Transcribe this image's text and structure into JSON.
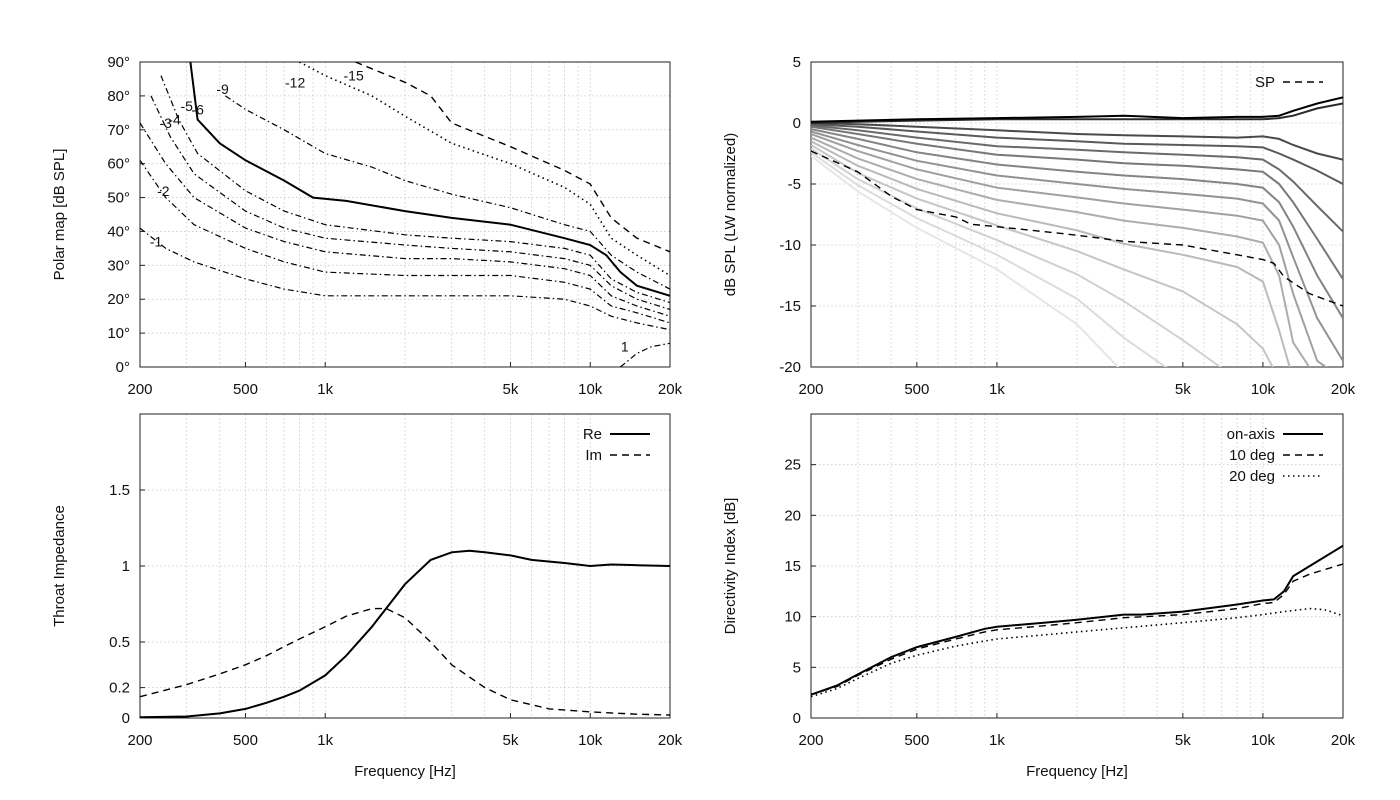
{
  "chart_data": [
    {
      "id": "polar",
      "type": "line",
      "subtype": "contour",
      "xlabel": "",
      "ylabel": "Polar map [dB SPL]",
      "xscale": "log",
      "xlim": [
        200,
        20000
      ],
      "ylim": [
        0,
        90
      ],
      "xticks": [
        200,
        500,
        1000,
        5000,
        10000,
        20000
      ],
      "xtick_labels": [
        "200",
        "500",
        "1k",
        "5k",
        "10k",
        "20k"
      ],
      "yticks": [
        0,
        10,
        20,
        30,
        40,
        50,
        60,
        70,
        80,
        90
      ],
      "ytick_labels": [
        "0°",
        "10°",
        "20°",
        "30°",
        "40°",
        "50°",
        "60°",
        "70°",
        "80°",
        "90°"
      ],
      "grid": true,
      "series": [
        {
          "label": "-1",
          "style": "dashdot",
          "x": [
            200,
            250,
            320,
            500,
            700,
            1000,
            2000,
            3000,
            5000,
            8000,
            10000,
            12000,
            15000,
            20000
          ],
          "y": [
            41,
            35,
            31,
            26,
            23,
            21,
            21,
            21,
            21,
            20,
            18,
            15,
            13,
            11
          ]
        },
        {
          "label": "-2",
          "style": "dashdot",
          "x": [
            200,
            250,
            320,
            500,
            700,
            1000,
            2000,
            3000,
            5000,
            8000,
            10000,
            12000,
            15000,
            20000
          ],
          "y": [
            61,
            50,
            42,
            35,
            31,
            28,
            27,
            27,
            27,
            25,
            23,
            18,
            16,
            13
          ]
        },
        {
          "label": "-3",
          "style": "dashdot",
          "x": [
            200,
            250,
            320,
            500,
            700,
            1000,
            2000,
            3000,
            5000,
            8000,
            10000,
            12000,
            15000,
            20000
          ],
          "y": [
            72,
            60,
            50,
            41,
            37,
            34,
            32,
            32,
            31,
            29,
            27,
            21,
            18,
            15
          ]
        },
        {
          "label": "-4",
          "style": "dashdot",
          "x": [
            220,
            260,
            320,
            500,
            700,
            1000,
            2000,
            3000,
            5000,
            8000,
            10000,
            12000,
            15000,
            20000
          ],
          "y": [
            80,
            68,
            57,
            46,
            41,
            38,
            36,
            35,
            34,
            32,
            30,
            24,
            20,
            17
          ]
        },
        {
          "label": "-5",
          "style": "dashdot",
          "x": [
            240,
            280,
            330,
            500,
            700,
            1000,
            2000,
            3000,
            5000,
            8000,
            10000,
            12000,
            15000,
            20000
          ],
          "y": [
            86,
            73,
            63,
            52,
            46,
            42,
            39,
            38,
            37,
            35,
            33,
            26,
            22,
            19
          ]
        },
        {
          "label": "-6",
          "style": "solid",
          "x": [
            310,
            330,
            400,
            500,
            700,
            900,
            1200,
            2000,
            3000,
            5000,
            8000,
            10000,
            11500,
            13000,
            15000,
            20000
          ],
          "y": [
            90,
            73,
            66,
            61,
            55,
            50,
            49,
            46,
            44,
            42,
            38,
            36,
            33,
            28,
            24,
            21
          ]
        },
        {
          "label": "-9",
          "style": "dashdot",
          "x": [
            420,
            500,
            700,
            1000,
            1500,
            2000,
            3000,
            5000,
            8000,
            10000,
            12000,
            15000,
            20000
          ],
          "y": [
            80,
            76,
            70,
            63,
            59,
            55,
            51,
            47,
            42,
            40,
            33,
            28,
            23
          ]
        },
        {
          "label": "-12",
          "style": "dotted",
          "x": [
            800,
            1000,
            1500,
            2000,
            3000,
            5000,
            8000,
            10000,
            12000,
            15000,
            20000
          ],
          "y": [
            90,
            86,
            80,
            74,
            66,
            60,
            53,
            48,
            38,
            33,
            27
          ]
        },
        {
          "label": "-15",
          "style": "dashed",
          "x": [
            1300,
            2000,
            2500,
            3000,
            5000,
            8000,
            10000,
            12000,
            15000,
            20000
          ],
          "y": [
            90,
            84,
            80,
            72,
            65,
            58,
            54,
            44,
            38,
            34
          ]
        },
        {
          "label": "1",
          "style": "dashdot",
          "x": [
            13000,
            15000,
            17000,
            20000
          ],
          "y": [
            0,
            4,
            6,
            7
          ]
        }
      ]
    },
    {
      "id": "spl",
      "type": "line",
      "xlabel": "",
      "ylabel": "dB SPL (LW normalized)",
      "xscale": "log",
      "xlim": [
        200,
        20000
      ],
      "ylim": [
        -20,
        5
      ],
      "xticks": [
        200,
        500,
        1000,
        5000,
        10000,
        20000
      ],
      "xtick_labels": [
        "200",
        "500",
        "1k",
        "5k",
        "10k",
        "20k"
      ],
      "yticks": [
        -20,
        -15,
        -10,
        -5,
        0,
        5
      ],
      "ytick_labels": [
        "-20",
        "-15",
        "-10",
        "-5",
        "0",
        "5"
      ],
      "grid": true,
      "legend": [
        {
          "label": "SP",
          "style": "dashed"
        }
      ],
      "legend_position": "top-right",
      "angle_curves_x": [
        200,
        300,
        500,
        1000,
        2000,
        3000,
        5000,
        8000,
        10000,
        11500,
        13000,
        16000,
        20000
      ],
      "angle_curves": [
        {
          "gray": "#000000",
          "y": [
            0.1,
            0.2,
            0.3,
            0.4,
            0.5,
            0.6,
            0.4,
            0.5,
            0.5,
            0.6,
            1.0,
            1.6,
            2.1
          ]
        },
        {
          "gray": "#2a2a2a",
          "y": [
            0.0,
            0.1,
            0.2,
            0.3,
            0.3,
            0.3,
            0.3,
            0.3,
            0.3,
            0.4,
            0.6,
            1.2,
            1.6
          ]
        },
        {
          "gray": "#4a4a4a",
          "y": [
            0.0,
            -0.1,
            -0.3,
            -0.6,
            -0.9,
            -1.0,
            -1.1,
            -1.2,
            -1.1,
            -1.3,
            -1.8,
            -2.5,
            -3.0
          ]
        },
        {
          "gray": "#5a5a5a",
          "y": [
            -0.1,
            -0.3,
            -0.7,
            -1.2,
            -1.5,
            -1.7,
            -1.8,
            -1.9,
            -2.0,
            -2.5,
            -3.0,
            -3.9,
            -5.0
          ]
        },
        {
          "gray": "#6a6a6a",
          "y": [
            -0.2,
            -0.6,
            -1.2,
            -1.9,
            -2.2,
            -2.4,
            -2.6,
            -2.8,
            -3.0,
            -3.8,
            -4.8,
            -6.8,
            -8.9
          ]
        },
        {
          "gray": "#777777",
          "y": [
            -0.3,
            -0.9,
            -1.7,
            -2.6,
            -3.0,
            -3.3,
            -3.5,
            -3.8,
            -4.0,
            -5.0,
            -6.5,
            -9.5,
            -12.8
          ]
        },
        {
          "gray": "#848484",
          "y": [
            -0.5,
            -1.3,
            -2.4,
            -3.4,
            -4.0,
            -4.3,
            -4.6,
            -5.0,
            -5.3,
            -6.5,
            -8.5,
            -12.5,
            -16.0
          ]
        },
        {
          "gray": "#929292",
          "y": [
            -0.7,
            -1.8,
            -3.1,
            -4.3,
            -5.0,
            -5.4,
            -5.8,
            -6.2,
            -6.6,
            -8.0,
            -11.0,
            -16.0,
            -19.5
          ]
        },
        {
          "gray": "#a0a0a0",
          "y": [
            -0.9,
            -2.3,
            -3.8,
            -5.3,
            -6.1,
            -6.6,
            -7.1,
            -7.6,
            -8.0,
            -10.0,
            -14.0,
            -19.5,
            -21.0
          ]
        },
        {
          "gray": "#adadad",
          "y": [
            -1.2,
            -2.9,
            -4.6,
            -6.3,
            -7.3,
            -8.0,
            -8.6,
            -9.3,
            -9.8,
            -12.5,
            -18.0,
            -21.0,
            -21.0
          ]
        },
        {
          "gray": "#bababa",
          "y": [
            -1.5,
            -3.5,
            -5.4,
            -7.4,
            -8.8,
            -9.9,
            -10.8,
            -11.8,
            -13.0,
            -17.0,
            -21.0,
            -21.0,
            -21.0
          ]
        },
        {
          "gray": "#c6c6c6",
          "y": [
            -1.8,
            -4.1,
            -6.2,
            -8.4,
            -10.5,
            -12.0,
            -13.8,
            -16.5,
            -18.5,
            -21.0,
            -21.0,
            -21.0,
            -21.0
          ]
        },
        {
          "gray": "#d1d1d1",
          "y": [
            -2.1,
            -4.6,
            -7.0,
            -9.6,
            -12.4,
            -14.6,
            -17.8,
            -21.0,
            -21.0,
            -21.0,
            -21.0,
            -21.0,
            -21.0
          ]
        },
        {
          "gray": "#dcdcdc",
          "y": [
            -2.4,
            -5.1,
            -7.8,
            -10.8,
            -14.4,
            -17.6,
            -21.0,
            -21.0,
            -21.0,
            -21.0,
            -21.0,
            -21.0,
            -21.0
          ]
        },
        {
          "gray": "#e6e6e6",
          "y": [
            -2.7,
            -5.6,
            -8.6,
            -12.0,
            -16.5,
            -20.5,
            -21.0,
            -21.0,
            -21.0,
            -21.0,
            -21.0,
            -21.0,
            -21.0
          ]
        }
      ],
      "series": [
        {
          "name": "SP",
          "style": "dashed",
          "x": [
            200,
            300,
            400,
            500,
            700,
            800,
            1000,
            1500,
            2000,
            3000,
            5000,
            8000,
            10000,
            11000,
            12000,
            15000,
            20000
          ],
          "y": [
            -2.3,
            -4.0,
            -6.0,
            -7.1,
            -7.7,
            -8.3,
            -8.5,
            -8.9,
            -9.2,
            -9.7,
            -10.0,
            -10.8,
            -11.2,
            -11.5,
            -12.6,
            -14.0,
            -15.0
          ]
        }
      ]
    },
    {
      "id": "impedance",
      "type": "line",
      "xlabel": "Frequency [Hz]",
      "ylabel": "Throat Impedance",
      "xscale": "log",
      "xlim": [
        200,
        20000
      ],
      "ylim": [
        0,
        2
      ],
      "xticks": [
        200,
        500,
        1000,
        5000,
        10000,
        20000
      ],
      "xtick_labels": [
        "200",
        "500",
        "1k",
        "5k",
        "10k",
        "20k"
      ],
      "yticks": [
        0,
        0.2,
        0.5,
        1,
        1.5
      ],
      "ytick_labels": [
        "0",
        "0.2",
        "0.5",
        "1",
        "1.5"
      ],
      "grid": true,
      "legend_position": "top-right",
      "series": [
        {
          "name": "Re",
          "style": "solid",
          "x": [
            200,
            300,
            400,
            500,
            600,
            700,
            800,
            1000,
            1200,
            1500,
            2000,
            2500,
            3000,
            3500,
            4000,
            5000,
            6000,
            8000,
            10000,
            12000,
            15000,
            20000
          ],
          "y": [
            0.005,
            0.01,
            0.03,
            0.06,
            0.1,
            0.14,
            0.18,
            0.28,
            0.41,
            0.6,
            0.88,
            1.04,
            1.09,
            1.1,
            1.09,
            1.07,
            1.04,
            1.02,
            1.0,
            1.01,
            1.005,
            1.0
          ]
        },
        {
          "name": "Im",
          "style": "dashed",
          "x": [
            200,
            300,
            400,
            500,
            600,
            700,
            800,
            1000,
            1200,
            1500,
            1700,
            2000,
            2500,
            3000,
            4000,
            5000,
            7000,
            10000,
            15000,
            20000
          ],
          "y": [
            0.14,
            0.22,
            0.29,
            0.35,
            0.41,
            0.47,
            0.52,
            0.6,
            0.67,
            0.72,
            0.72,
            0.66,
            0.5,
            0.35,
            0.2,
            0.12,
            0.06,
            0.04,
            0.025,
            0.02
          ]
        }
      ]
    },
    {
      "id": "directivity",
      "type": "line",
      "xlabel": "Frequency [Hz]",
      "ylabel": "Directivity Index [dB]",
      "xscale": "log",
      "xlim": [
        200,
        20000
      ],
      "ylim": [
        0,
        30
      ],
      "xticks": [
        200,
        500,
        1000,
        5000,
        10000,
        20000
      ],
      "xtick_labels": [
        "200",
        "500",
        "1k",
        "5k",
        "10k",
        "20k"
      ],
      "yticks": [
        0,
        5,
        10,
        15,
        20,
        25
      ],
      "ytick_labels": [
        "0",
        "5",
        "10",
        "15",
        "20",
        "25"
      ],
      "grid": true,
      "legend_position": "top-right",
      "series": [
        {
          "name": "on-axis",
          "style": "solid",
          "x": [
            200,
            250,
            300,
            400,
            500,
            700,
            900,
            1000,
            1500,
            2000,
            3000,
            3500,
            5000,
            8000,
            10000,
            11000,
            12000,
            13000,
            15000,
            20000
          ],
          "y": [
            2.3,
            3.2,
            4.3,
            6.0,
            7.0,
            8.0,
            8.8,
            9.0,
            9.4,
            9.7,
            10.2,
            10.2,
            10.5,
            11.2,
            11.6,
            11.7,
            12.5,
            14.0,
            15.0,
            17.0
          ]
        },
        {
          "name": "10 deg",
          "style": "dashed",
          "x": [
            200,
            250,
            300,
            400,
            500,
            700,
            900,
            1000,
            1500,
            2000,
            3000,
            5000,
            8000,
            10000,
            11000,
            12000,
            13000,
            15000,
            20000
          ],
          "y": [
            2.3,
            3.1,
            4.2,
            5.8,
            6.8,
            7.8,
            8.5,
            8.7,
            9.1,
            9.4,
            9.9,
            10.2,
            10.8,
            11.3,
            11.4,
            12.2,
            13.5,
            14.2,
            15.2
          ]
        },
        {
          "name": "20 deg",
          "style": "dotted",
          "x": [
            200,
            250,
            300,
            400,
            500,
            700,
            900,
            1000,
            1500,
            2000,
            3000,
            5000,
            8000,
            10000,
            12000,
            15000,
            17000,
            20000
          ],
          "y": [
            2.1,
            2.9,
            3.9,
            5.4,
            6.2,
            7.1,
            7.6,
            7.8,
            8.2,
            8.5,
            8.9,
            9.4,
            9.9,
            10.2,
            10.5,
            10.8,
            10.7,
            10.1
          ]
        }
      ]
    }
  ]
}
